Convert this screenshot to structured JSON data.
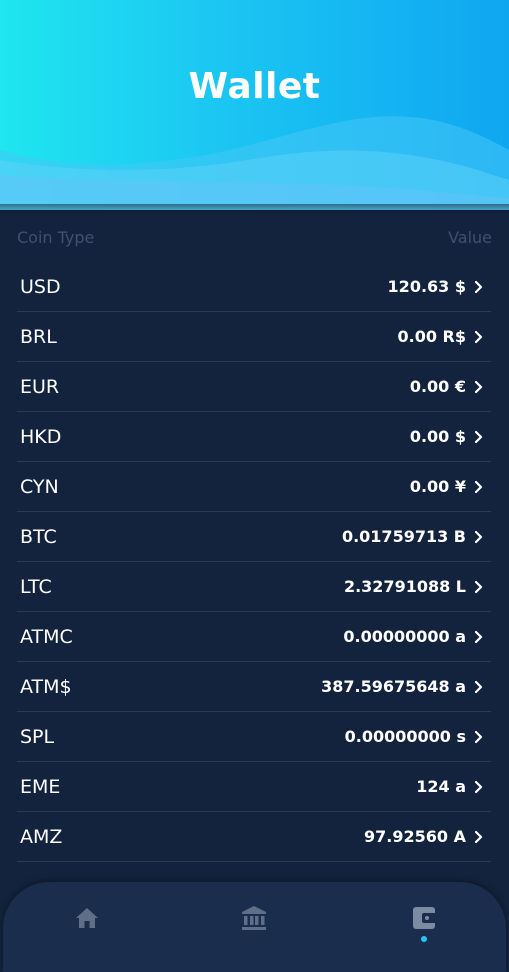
{
  "header": {
    "title": "Wallet"
  },
  "columns": {
    "coin_type": "Coin Type",
    "value": "Value"
  },
  "coins": [
    {
      "code": "USD",
      "value": "120.63 $"
    },
    {
      "code": "BRL",
      "value": "0.00 R$"
    },
    {
      "code": "EUR",
      "value": "0.00 €"
    },
    {
      "code": "HKD",
      "value": "0.00 $"
    },
    {
      "code": "CYN",
      "value": "0.00 ¥"
    },
    {
      "code": "BTC",
      "value": "0.01759713 B"
    },
    {
      "code": "LTC",
      "value": "2.32791088 L"
    },
    {
      "code": "ATMC",
      "value": "0.00000000 a"
    },
    {
      "code": "ATM$",
      "value": "387.59675648 a"
    },
    {
      "code": "SPL",
      "value": "0.00000000 s"
    },
    {
      "code": "EME",
      "value": "124 a"
    },
    {
      "code": "AMZ",
      "value": "97.92560 A"
    }
  ],
  "nav": {
    "items": [
      {
        "icon": "home-icon"
      },
      {
        "icon": "bank-icon"
      },
      {
        "icon": "wallet-icon",
        "active": true
      }
    ],
    "active_color": "#24c6f0"
  },
  "colors": {
    "background": "#13233d",
    "header_gradient_start": "#1fe6ef",
    "header_gradient_end": "#0fa6f1"
  }
}
